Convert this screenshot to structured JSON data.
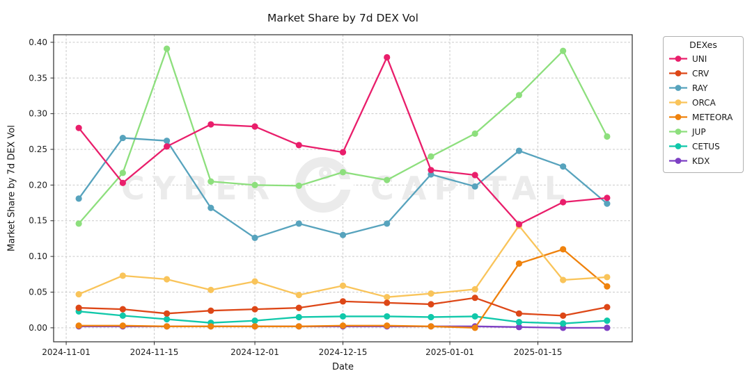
{
  "figure": {
    "background": "#ffffff"
  },
  "chart_data": {
    "type": "line",
    "title": "Market Share by 7d DEX Vol",
    "xlabel": "Date",
    "ylabel": "Market Share by 7d DEX Vol",
    "grid": true,
    "legend": {
      "title": "DEXes",
      "position": "right"
    },
    "watermark": {
      "left": "CYBER",
      "right": "CAPITAL",
      "color": "#ebebeb"
    },
    "style": {
      "grid_color": "#c9c9c9",
      "spine_color": "#2b2b2b",
      "tick_label_color": "#1c1c1c"
    },
    "xlim": [
      "2024-10-30",
      "2025-01-30"
    ],
    "ylim": [
      -0.0196,
      0.4106
    ],
    "x_ticks": [
      {
        "date": "2024-11-01",
        "label": "2024-11-01"
      },
      {
        "date": "2024-11-15",
        "label": "2024-11-15"
      },
      {
        "date": "2024-12-01",
        "label": "2024-12-01"
      },
      {
        "date": "2024-12-15",
        "label": "2024-12-15"
      },
      {
        "date": "2025-01-01",
        "label": "2025-01-01"
      },
      {
        "date": "2025-01-15",
        "label": "2025-01-15"
      }
    ],
    "y_ticks": [
      {
        "value": 0.0,
        "label": "0.00"
      },
      {
        "value": 0.05,
        "label": "0.05"
      },
      {
        "value": 0.1,
        "label": "0.10"
      },
      {
        "value": 0.15,
        "label": "0.15"
      },
      {
        "value": 0.2,
        "label": "0.20"
      },
      {
        "value": 0.25,
        "label": "0.25"
      },
      {
        "value": 0.3,
        "label": "0.30"
      },
      {
        "value": 0.35,
        "label": "0.35"
      },
      {
        "value": 0.4,
        "label": "0.40"
      }
    ],
    "x": [
      "2024-11-03",
      "2024-11-10",
      "2024-11-17",
      "2024-11-24",
      "2024-12-01",
      "2024-12-08",
      "2024-12-15",
      "2024-12-22",
      "2024-12-29",
      "2025-01-05",
      "2025-01-12",
      "2025-01-19",
      "2025-01-26"
    ],
    "series": [
      {
        "name": "UNI",
        "color": "#e91e6b",
        "values": [
          0.28,
          0.203,
          0.254,
          0.285,
          0.282,
          0.256,
          0.246,
          0.379,
          0.221,
          0.214,
          0.145,
          0.176,
          0.182
        ]
      },
      {
        "name": "CRV",
        "color": "#dd4717",
        "values": [
          0.028,
          0.026,
          0.02,
          0.024,
          0.026,
          0.028,
          0.037,
          0.035,
          0.033,
          0.042,
          0.02,
          0.017,
          0.029
        ]
      },
      {
        "name": "RAY",
        "color": "#57a3bd",
        "values": [
          0.181,
          0.266,
          0.262,
          0.168,
          0.126,
          0.146,
          0.13,
          0.146,
          0.215,
          0.198,
          0.248,
          0.226,
          0.174
        ]
      },
      {
        "name": "ORCA",
        "color": "#f9c45a",
        "values": [
          0.047,
          0.073,
          0.068,
          0.053,
          0.065,
          0.046,
          0.059,
          0.043,
          0.048,
          0.054,
          0.143,
          0.067,
          0.071
        ]
      },
      {
        "name": "METEORA",
        "color": "#ef820d",
        "values": [
          0.003,
          0.003,
          0.002,
          0.002,
          0.002,
          0.002,
          0.003,
          0.003,
          0.002,
          0.0,
          0.09,
          0.11,
          0.058
        ]
      },
      {
        "name": "JUP",
        "color": "#8ddf7d",
        "values": [
          0.146,
          0.217,
          0.391,
          0.205,
          0.2,
          0.199,
          0.218,
          0.207,
          0.24,
          0.272,
          0.326,
          0.388,
          0.268
        ]
      },
      {
        "name": "CETUS",
        "color": "#10c8aa",
        "values": [
          0.023,
          0.017,
          0.012,
          0.007,
          0.01,
          0.015,
          0.016,
          0.016,
          0.015,
          0.016,
          0.008,
          0.006,
          0.01
        ]
      },
      {
        "name": "KDX",
        "color": "#7d40c4",
        "values": [
          0.002,
          0.002,
          0.002,
          0.002,
          0.002,
          0.002,
          0.002,
          0.002,
          0.002,
          0.002,
          0.001,
          0.0,
          0.0
        ]
      }
    ]
  }
}
